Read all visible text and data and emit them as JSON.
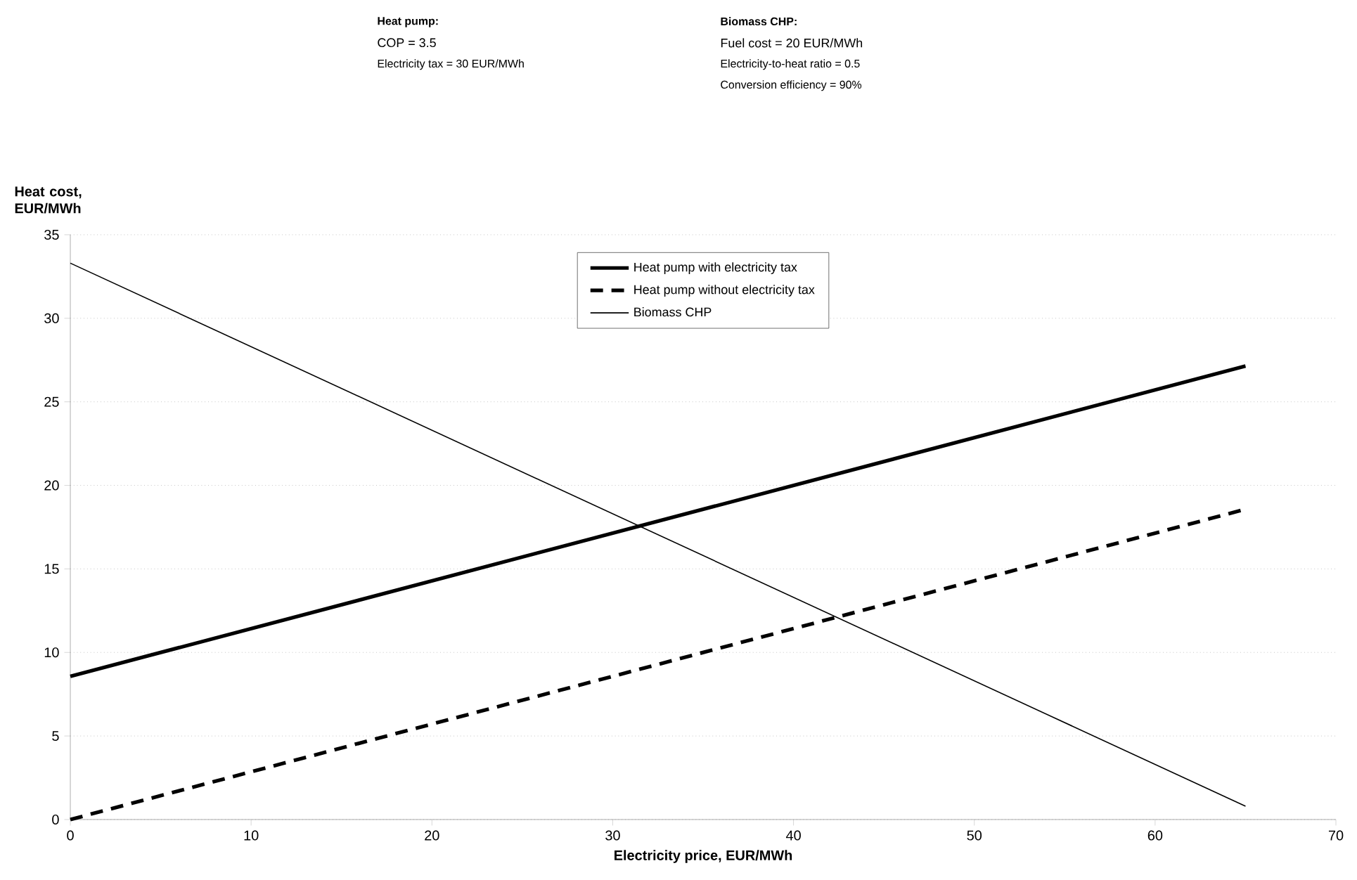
{
  "chart_data": {
    "type": "line",
    "ylabel": "Heat cost, EUR/MWh",
    "xlabel": "Electricity price, EUR/MWh",
    "annotations": [
      "Heat pump:",
      "COP = 3.5",
      "Electricity tax = 30 EUR/MWh",
      "Biomass CHP:",
      "Fuel cost = 20 EUR/MWh",
      "Electricity-to-heat ratio = 0.5",
      "Conversion efficiency = 90%"
    ],
    "x": [
      0,
      65
    ],
    "series": [
      {
        "name": "Heat pump with electricity tax",
        "color": "#000000",
        "line_style": "solid",
        "values": [
          8.57,
          27.14
        ]
      },
      {
        "name": "Heat pump without electricity tax",
        "color": "#000000",
        "line_style": "dashed",
        "values": [
          0,
          18.57
        ]
      },
      {
        "name": "Biomass CHP",
        "color": "#000000",
        "line_style": "solid",
        "values": [
          33.3,
          0.8
        ]
      }
    ],
    "xlim": [
      0,
      70
    ],
    "ylim": [
      0,
      35
    ],
    "xticks": [
      0,
      10,
      20,
      30,
      40,
      50,
      60,
      70
    ],
    "yticks": [
      0,
      5,
      10,
      15,
      20,
      25,
      30,
      35
    ],
    "grid": "y",
    "legend": "top",
    "marker": "none"
  }
}
